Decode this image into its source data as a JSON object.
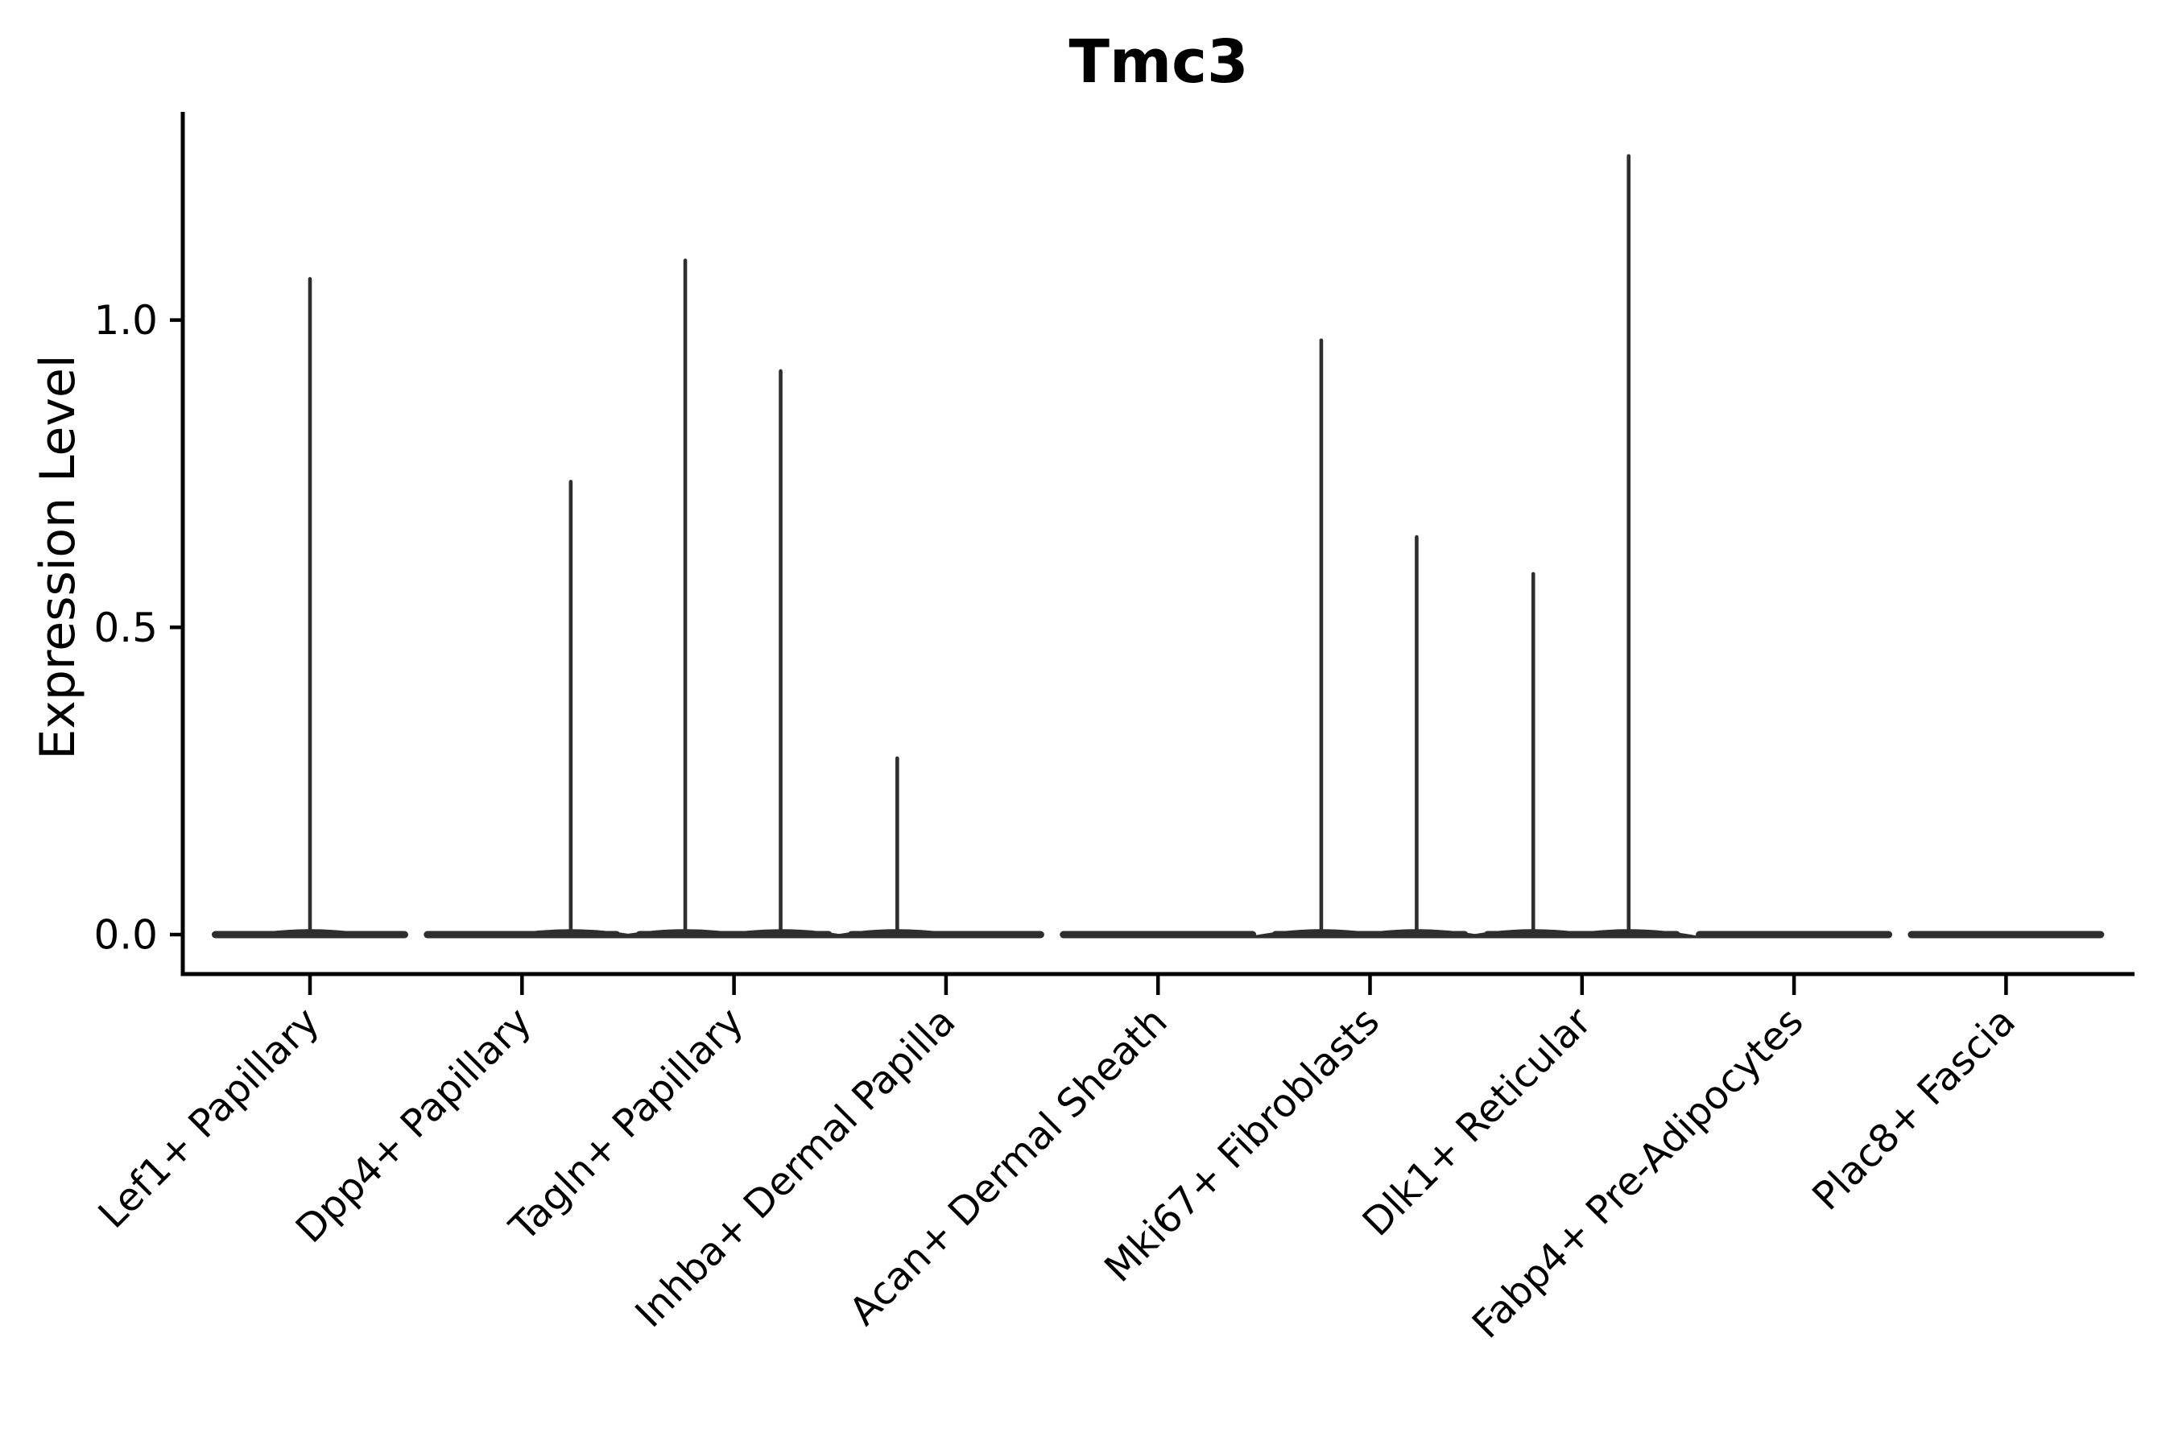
{
  "chart_data": {
    "type": "violin",
    "title": "Tmc3",
    "ylabel": "Expression Level",
    "xlabel": "",
    "ylim": [
      -0.07,
      1.34
    ],
    "grid": false,
    "legend": "none",
    "yticks": [
      {
        "value": 0.0,
        "label": "0.0"
      },
      {
        "value": 0.5,
        "label": "0.5"
      },
      {
        "value": 1.0,
        "label": "1.0"
      }
    ],
    "categories": [
      {
        "label": "Lef1+ Papillary",
        "zero_bulk": true,
        "tails": [
          {
            "pos": 0.0,
            "max": 1.07
          }
        ]
      },
      {
        "label": "Dpp4+ Papillary",
        "zero_bulk": true,
        "tails": [
          {
            "pos": 0.23,
            "max": 0.74
          }
        ]
      },
      {
        "label": "Tagln+ Papillary",
        "zero_bulk": true,
        "tails": [
          {
            "pos": -0.23,
            "max": 1.1
          },
          {
            "pos": 0.22,
            "max": 0.92
          }
        ]
      },
      {
        "label": "Inhba+ Dermal Papilla",
        "zero_bulk": true,
        "tails": [
          {
            "pos": -0.23,
            "max": 0.29
          }
        ]
      },
      {
        "label": "Acan+ Dermal Sheath",
        "zero_bulk": true,
        "tails": []
      },
      {
        "label": "Mki67+ Fibroblasts",
        "zero_bulk": true,
        "tails": [
          {
            "pos": -0.23,
            "max": 0.97
          },
          {
            "pos": 0.22,
            "max": 0.65
          }
        ]
      },
      {
        "label": "Dlk1+ Reticular",
        "zero_bulk": true,
        "tails": [
          {
            "pos": -0.23,
            "max": 0.59
          },
          {
            "pos": 0.22,
            "max": 1.27
          }
        ]
      },
      {
        "label": "Fabp4+ Pre-Adipocytes",
        "zero_bulk": true,
        "tails": []
      },
      {
        "label": "Plac8+ Fascia",
        "zero_bulk": true,
        "tails": []
      }
    ],
    "colors": {
      "violin": "#2e2e2e",
      "axis": "#000000",
      "text": "#000000",
      "background": "#ffffff"
    }
  }
}
